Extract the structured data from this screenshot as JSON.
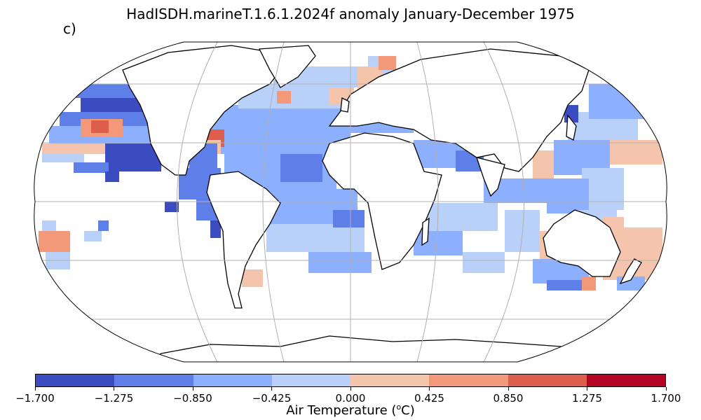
{
  "title": "HadISDH.marineT.1.6.1.2024f anomaly January-December 1975",
  "panel_label": "c)",
  "colorbar": {
    "label_prefix": "Air Temperature (",
    "label_sup": "o",
    "label_suffix": "C)",
    "ticks": [
      "−1.700",
      "−1.275",
      "−0.850",
      "−0.425",
      "0.000",
      "0.425",
      "0.850",
      "1.275",
      "1.700"
    ],
    "colors": [
      "#3b4cc0",
      "#5f7fe8",
      "#8db0fe",
      "#b9d0f9",
      "#f5c4ac",
      "#f4987a",
      "#dd5f4b",
      "#b40426"
    ]
  },
  "map": {
    "projection": "Robinson",
    "gridlines": true,
    "coastlines": true
  }
}
